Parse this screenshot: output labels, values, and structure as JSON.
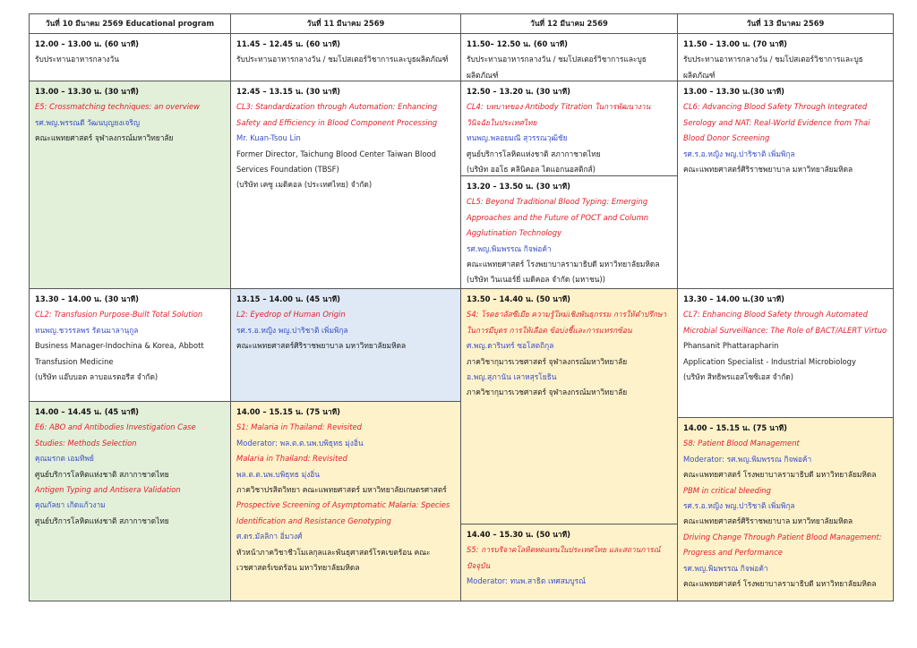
{
  "table": {
    "headers": [
      "วันที่ 10 มีนาคม 2569 Educational program",
      "วันที่ 11 มีนาคม 2569",
      "วันที่ 12 มีนาคม 2569",
      "วันที่ 13 มีนาคม 2569"
    ],
    "columns": [
      [
        {
          "fill": "#ffffff",
          "lines": [
            {
              "time": "12.00 – 13.00 น. (60 นาที)"
            },
            {
              "text": "รับประทานอาหารกลางวัน"
            }
          ]
        },
        {
          "fill": "#e2efd9",
          "lines": [
            {
              "time": "13.00 – 13.30 น. (30 นาที)"
            },
            {
              "title": "E5: Crossmatching techniques: an overview"
            },
            {
              "person": "รศ.พญ.พรรณดี วัฒนบุญยงเจริญ"
            },
            {
              "text": "คณะแพทยศาสตร์ จุฬาลงกรณ์มหาวิทยาลัย"
            }
          ]
        },
        {
          "fill": "#ffffff",
          "lines": [
            {
              "time": "13.30 – 14.00 น. (30 นาที)"
            },
            {
              "title": "CL2: Transfusion Purpose-Built Total Solution"
            },
            {
              "person": "ทนพญ.ชวรรลพร รัตนมาลานุกูล"
            },
            {
              "text": "Business Manager-Indochina & Korea, Abbott Transfusion Medicine"
            },
            {
              "text": "(บริษัท แอ๊บบอต ลาบอแรตอรีส จำกัด)"
            }
          ]
        },
        {
          "fill": "#e2efd9",
          "lines": [
            {
              "time": "14.00 – 14.45 น. (45 นาที)"
            },
            {
              "title": "E6: ABO and Antibodies Investigation Case Studies: Methods Selection"
            },
            {
              "person": "คุณมรกต เอมทิพย์"
            },
            {
              "text": "ศูนย์บริการโลหิตแห่งชาติ สภากาชาดไทย"
            },
            {
              "title": "Antigen Typing and Antisera Validation"
            },
            {
              "person": "คุณกัลยา เกิดแก้วงาม"
            },
            {
              "text": "ศูนย์บริการโลหิตแห่งชาติ สภากาชาดไทย"
            }
          ]
        }
      ],
      [
        {
          "fill": "#ffffff",
          "lines": [
            {
              "time": "11.45 – 12.45 น. (60 นาที)"
            },
            {
              "text": "รับประทานอาหารกลางวัน / ชมโปสเตอร์วิชาการและบูธผลิตภัณฑ์"
            }
          ]
        },
        {
          "fill": "#ffffff",
          "lines": [
            {
              "time": "12.45 – 13.15 น. (30 นาที)"
            },
            {
              "title": "CL3: Standardization through Automation: Enhancing Safety and Efficiency in Blood Component Processing"
            },
            {
              "person": "Mr. Kuan-Tsou Lin"
            },
            {
              "text": "Former Director, Taichung Blood Center Taiwan Blood Services Foundation (TBSF)"
            },
            {
              "text": "(บริษัท เคซู เมดิคอล (ประเทศไทย) จำกัด)"
            }
          ]
        },
        {
          "fill": "#dee9f5",
          "lines": [
            {
              "time": "13.15 – 14.00 น. (45 นาที)"
            },
            {
              "title": "L2: Eyedrop of Human Origin"
            },
            {
              "person": "รศ.ร.อ.หญิง พญ.ปาริชาติ เพิ่มพิกุล"
            },
            {
              "text": "คณะแพทยศาสตร์ศิริราชพยาบาล มหาวิทยาลัยมหิดล"
            }
          ]
        },
        {
          "fill": "#fef2cb",
          "lines": [
            {
              "time": "14.00 – 15.15 น. (75 นาที)"
            },
            {
              "title": "S1: Malaria in Thailand: Revisited"
            },
            {
              "person": "Moderator: พล.ต.ต.นพ.บพิธุทธ มุ่งอิ่น"
            },
            {
              "title": "Malaria in Thailand: Revisited"
            },
            {
              "person": "พล.ต.ต.นพ.บพิธุทธ มุ่งอิ่น"
            },
            {
              "text": "ภาควิชาปรสิตวิทยา คณะแพทยศาสตร์ มหาวิทยาลัยเกษตรศาสตร์"
            },
            {
              "title": "Prospective Screening of Asymptomatic Malaria: Species Identification and Resistance Genotyping"
            },
            {
              "person": "ศ.ดร.มัลลิกา อิ่มวงศ์"
            },
            {
              "text": "หัวหน้าภาควิชาชีวโมเลกุลและพันธุศาสตร์โรคเขตร้อน คณะเวชศาสตร์เขตร้อน มหาวิทยาลัยมหิดล"
            }
          ]
        }
      ],
      [
        {
          "fill": "#ffffff",
          "lines": [
            {
              "time": "11.50– 12.50 น. (60 นาที)"
            },
            {
              "text": "รับประทานอาหารกลางวัน / ชมโปสเตอร์วิชาการและบูธผลิตภัณฑ์"
            }
          ]
        },
        {
          "fill": "#ffffff",
          "lines": [
            {
              "time": "12.50 – 13.20 น. (30 นาที)"
            },
            {
              "title": "CL4: บทบาทของ Antibody Titration ในการพัฒนางานวินิจฉัยในประเทศไทย"
            },
            {
              "person": "ทนพญ.พลอยมณี สุวรรณวุฒิชัย"
            },
            {
              "text": "ศูนย์บริการโลหิตแห่งชาติ สภากาชาดไทย"
            },
            {
              "text": "(บริษัท ออโธ คลินิคอล ไดแอกนอสติกส์)"
            }
          ]
        },
        {
          "fill": "#ffffff",
          "lines": [
            {
              "time": "13.20 – 13.50 น. (30 นาที)"
            },
            {
              "title": "CL5: Beyond Traditional Blood Typing: Emerging Approaches and the Future of POCT and Column Agglutination Technology"
            },
            {
              "person": "รศ.พญ.พิมพรรณ กิจพ่อค้า"
            },
            {
              "text": "คณะแพทยศาสตร์ โรงพยาบาลรามาธิบดี มหาวิทยาลัยมหิดล"
            },
            {
              "text": "(บริษัท วินเนอร์ยี่ เมดิคอล จำกัด (มหาชน))"
            }
          ]
        },
        {
          "fill": "#fef2cb",
          "lines": [
            {
              "time": "13.50 – 14.40 น. (50 นาที)"
            },
            {
              "title": "S4: โรคธาลัสซีเมีย ความรู้ใหม่เชิงพันธุกรรม การให้คำปรึกษาในการมีบุตร การให้เลือด ข้อบ่งชี้และการแทรกซ้อน"
            },
            {
              "person": "ศ.พญ.ดารินทร์ ซอโสตถิกุล"
            },
            {
              "text": "ภาควิชากุมารเวชศาสตร์ จุฬาลงกรณ์มหาวิทยาลัย"
            },
            {
              "person": "อ.พญ.สุภานัน เลาหสุรโยธิน"
            },
            {
              "text": "ภาควิชากุมารเวชศาสตร์ จุฬาลงกรณ์มหาวิทยาลัย"
            }
          ]
        },
        {
          "fill": "#fef2cb",
          "lines": [
            {
              "time": "14.40 – 15.30 น. (50 นาที)"
            },
            {
              "title": "S5: การบริจาคโลหิตทดแทนในประเทศไทย และสถานการณ์ปัจจุบัน"
            },
            {
              "person": "Moderator: ทนพ.สาธิต เทศสมบูรณ์"
            }
          ]
        }
      ],
      [
        {
          "fill": "#ffffff",
          "lines": [
            {
              "time": "11.50 – 13.00 น. (70 นาที)"
            },
            {
              "text": "รับประทานอาหารกลางวัน / ชมโปสเตอร์วิชาการและบูธผลิตภัณฑ์"
            }
          ]
        },
        {
          "fill": "#ffffff",
          "lines": [
            {
              "time": "13.00 – 13.30 น.(30 นาที)"
            },
            {
              "title": "CL6: Advancing Blood Safety Through Integrated Serology and NAT: Real-World Evidence from Thai Blood Donor Screening"
            },
            {
              "person": "รศ.ร.อ.หญิง พญ.ปาริชาติ เพิ่มพิกุล"
            },
            {
              "text": "คณะแพทยศาสตร์ศิริราชพยาบาล มหาวิทยาลัยมหิดล"
            }
          ]
        },
        {
          "fill": "#ffffff",
          "lines": [
            {
              "time": "13.30 – 14.00 น.(30 นาที)"
            },
            {
              "title": "CL7: Enhancing Blood Safety through Automated Microbial Surveillance: The Role of BACT/ALERT Virtuo"
            },
            {
              "text": "Phansanit Phattarapharin"
            },
            {
              "text": "Application Specialist - Industrial Microbiology"
            },
            {
              "text": "(บริษัท สิทธิพรแอสโซซิเอส จำกัด)"
            }
          ]
        },
        {
          "fill": "#fef2cb",
          "lines": [
            {
              "time": "14.00 – 15.15 น. (75 นาที)"
            },
            {
              "title": "S8: Patient Blood Management"
            },
            {
              "person": "Moderator: รศ.พญ.พิมพรรณ กิจพ่อค้า"
            },
            {
              "text": "คณะแพทยศาสตร์ โรงพยาบาลรามาธิบดี มหาวิทยาลัยมหิดล"
            },
            {
              "title": "PBM in critical bleeding"
            },
            {
              "person": "รศ.ร.อ.หญิง พญ.ปาริชาติ เพิ่มพิกุล"
            },
            {
              "text": "คณะแพทยศาสตร์ศิริราชพยาบาล มหาวิทยาลัยมหิดล"
            },
            {
              "title": "Driving Change Through Patient Blood Management: Progress and Performance"
            },
            {
              "person": "รศ.พญ.พิมพรรณ กิจพ่อค้า"
            },
            {
              "text": "คณะแพทยศาสตร์ โรงพยาบาลรามาธิบดี มหาวิทยาลัยมหิดล"
            }
          ]
        }
      ]
    ]
  }
}
